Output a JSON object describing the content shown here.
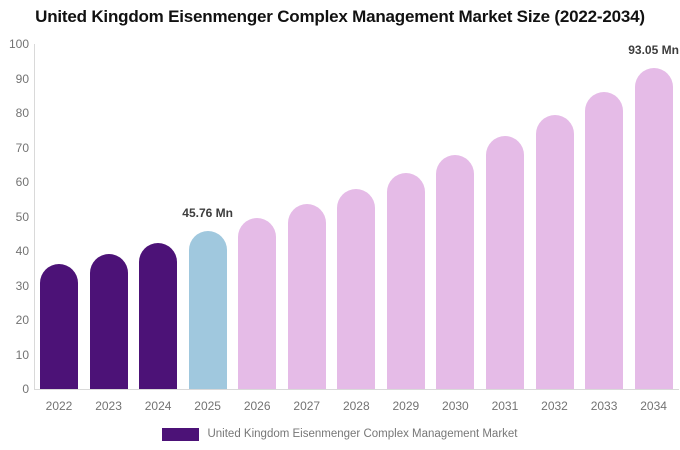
{
  "title": "United Kingdom Eisenmenger Complex Management Market Size (2022-2034)",
  "chart_data": {
    "type": "bar",
    "title": "United Kingdom Eisenmenger Complex Management Market Size (2022-2034)",
    "categories": [
      "2022",
      "2023",
      "2024",
      "2025",
      "2026",
      "2027",
      "2028",
      "2029",
      "2030",
      "2031",
      "2032",
      "2033",
      "2034"
    ],
    "series": [
      {
        "name": "United Kingdom Eisenmenger Complex Management Market",
        "values": [
          36.1,
          39.1,
          42.3,
          45.76,
          49.5,
          53.6,
          58.0,
          62.7,
          67.9,
          73.4,
          79.5,
          86.0,
          93.05
        ]
      }
    ],
    "ylabel": "",
    "xlabel": "",
    "ylim": [
      0,
      100
    ],
    "yticks": [
      0,
      10,
      20,
      30,
      40,
      50,
      60,
      70,
      80,
      90,
      100
    ],
    "grid": false,
    "legend_position": "bottom",
    "annotations": [
      {
        "category": "2025",
        "text": "45.76 Mn"
      },
      {
        "category": "2034",
        "text": "93.05 Mn"
      }
    ],
    "colors": {
      "historical": "#4C1277",
      "current_year": "#A0C8DE",
      "forecast": "#E5BBE7"
    },
    "bar_roles": [
      "historical",
      "historical",
      "historical",
      "current_year",
      "forecast",
      "forecast",
      "forecast",
      "forecast",
      "forecast",
      "forecast",
      "forecast",
      "forecast",
      "forecast"
    ]
  },
  "legend": {
    "label": "United Kingdom Eisenmenger Complex Management Market",
    "swatch_color": "#4C1277"
  },
  "axis": {
    "line_color": "#d9d9d9",
    "tick_label_color": "#737373"
  }
}
